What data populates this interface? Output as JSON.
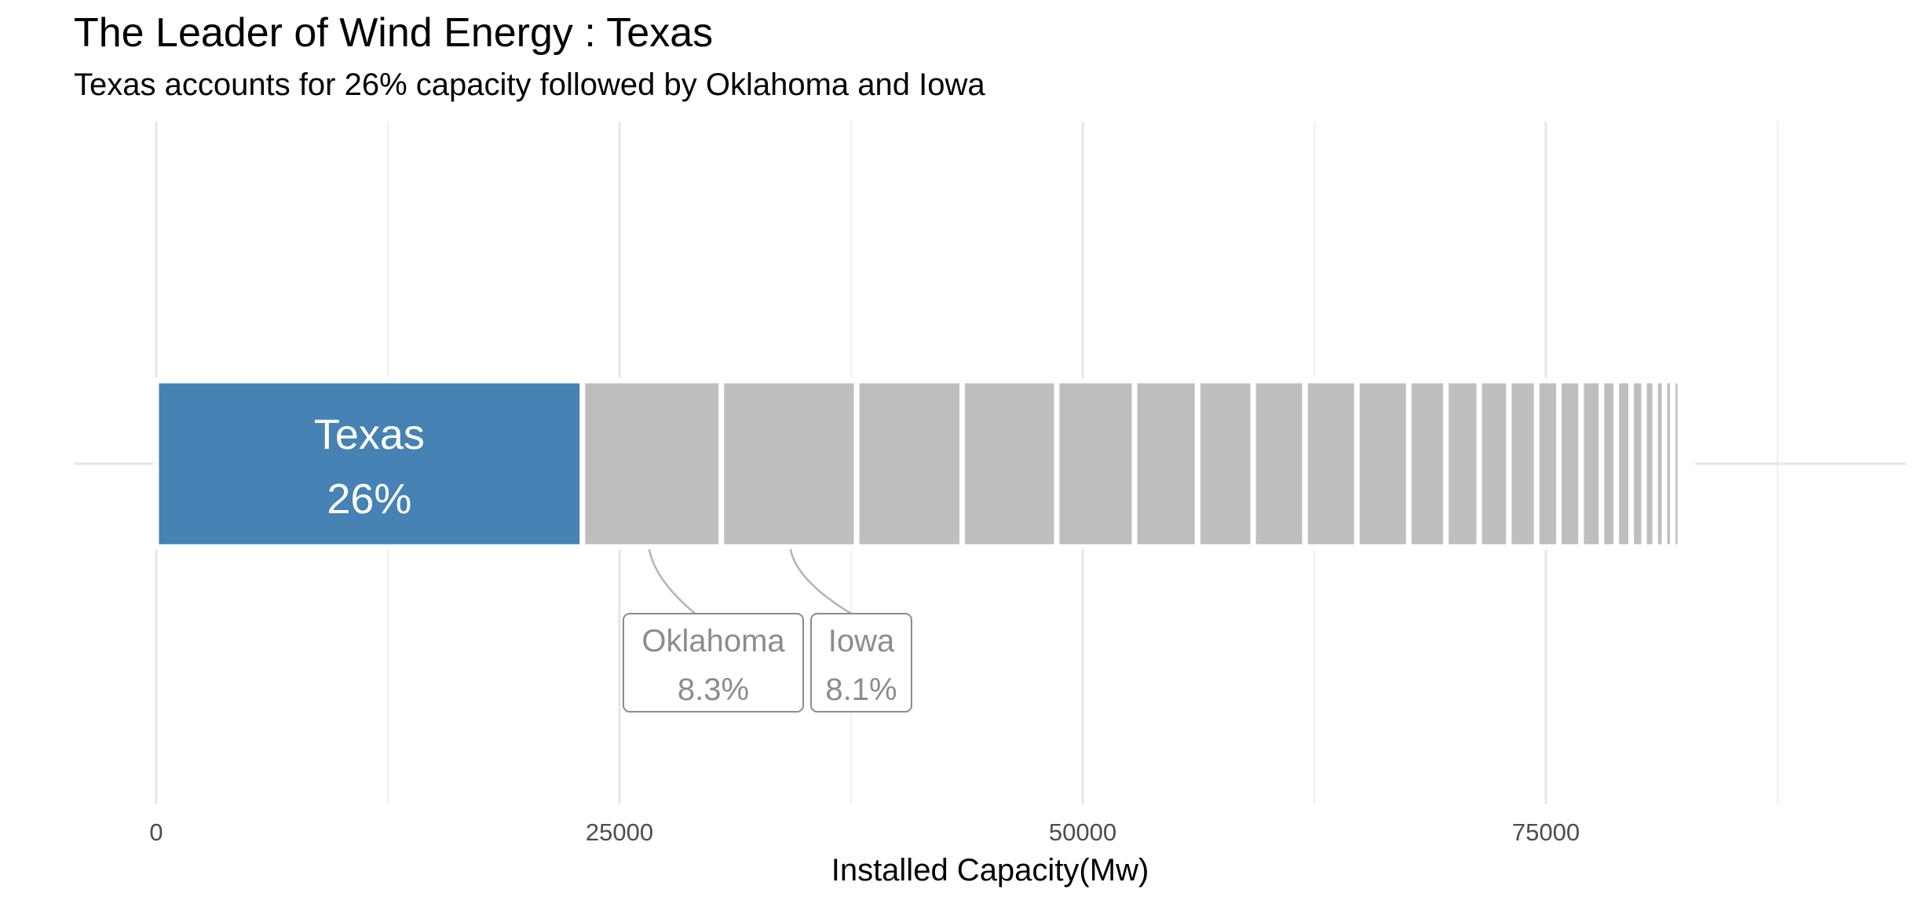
{
  "chart_data": {
    "type": "bar",
    "orientation": "horizontal-stacked",
    "title": "The Leader of Wind Energy : Texas",
    "subtitle": "Texas accounts for 26% capacity followed by Oklahoma and Iowa",
    "xlabel": "Installed Capacity(Mw)",
    "ylabel": "",
    "xlim": [
      0,
      90000
    ],
    "x_ticks": [
      0,
      25000,
      50000,
      75000
    ],
    "x_tick_labels": [
      "0",
      "25000",
      "50000",
      "75000"
    ],
    "grid": true,
    "legend": "none",
    "highlight_color": "#4682B4",
    "other_color": "#BEBEBE",
    "segments": [
      {
        "name": "Texas",
        "value": 23000,
        "label": "26%",
        "highlight": true
      },
      {
        "name": "Oklahoma",
        "value": 7500,
        "label": "8.3%"
      },
      {
        "name": "Iowa",
        "value": 7300,
        "label": "8.1%"
      },
      {
        "name": "",
        "value": 5700
      },
      {
        "name": "",
        "value": 5100
      },
      {
        "name": "",
        "value": 4200
      },
      {
        "name": "",
        "value": 3400
      },
      {
        "name": "",
        "value": 3000
      },
      {
        "name": "",
        "value": 2800
      },
      {
        "name": "",
        "value": 2800
      },
      {
        "name": "",
        "value": 2800
      },
      {
        "name": "",
        "value": 2000
      },
      {
        "name": "",
        "value": 1800
      },
      {
        "name": "",
        "value": 1600
      },
      {
        "name": "",
        "value": 1500
      },
      {
        "name": "",
        "value": 1200
      },
      {
        "name": "",
        "value": 1200
      },
      {
        "name": "",
        "value": 1100
      },
      {
        "name": "",
        "value": 800
      },
      {
        "name": "",
        "value": 800
      },
      {
        "name": "",
        "value": 700
      },
      {
        "name": "",
        "value": 600
      },
      {
        "name": "",
        "value": 500
      },
      {
        "name": "",
        "value": 450
      },
      {
        "name": "",
        "value": 400
      },
      {
        "name": "",
        "value": 300
      },
      {
        "name": "",
        "value": 200
      },
      {
        "name": "",
        "value": 150
      }
    ]
  }
}
